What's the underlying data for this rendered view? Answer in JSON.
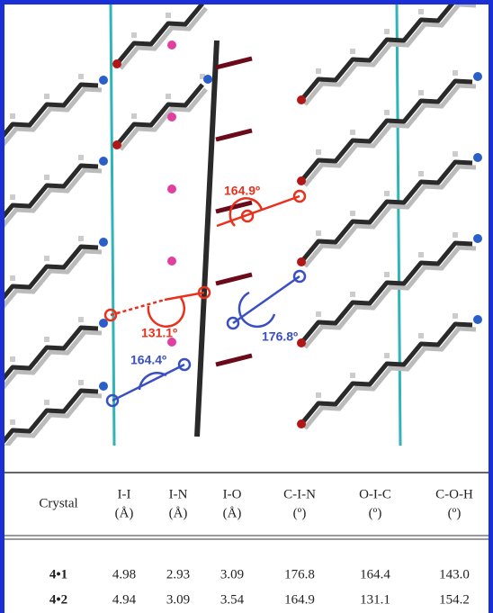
{
  "figure": {
    "angle_labels": [
      {
        "text": "164.9º",
        "color": "#e8301c"
      },
      {
        "text": "131.1º",
        "color": "#e8301c"
      },
      {
        "text": "176.8º",
        "color": "#3a4fc0"
      },
      {
        "text": "164.4º",
        "color": "#3a4fc0"
      }
    ]
  },
  "table": {
    "header": [
      {
        "name": "Crystal"
      },
      {
        "name": "I-I",
        "unit": "(Å)"
      },
      {
        "name": "I-N",
        "unit": "(Å)"
      },
      {
        "name": "I-O",
        "unit": "(Å)"
      },
      {
        "name": "C-I-N",
        "unit": "(º)"
      },
      {
        "name": "O-I-C",
        "unit": "(º)"
      },
      {
        "name": "C-O-H",
        "unit": "(º)"
      }
    ],
    "rows": [
      [
        "4•1",
        "4.98",
        "2.93",
        "3.09",
        "176.8",
        "164.4",
        "143.0"
      ],
      [
        "4•2",
        "4.94",
        "3.09",
        "3.54",
        "164.9",
        "131.1",
        "154.2"
      ]
    ]
  }
}
